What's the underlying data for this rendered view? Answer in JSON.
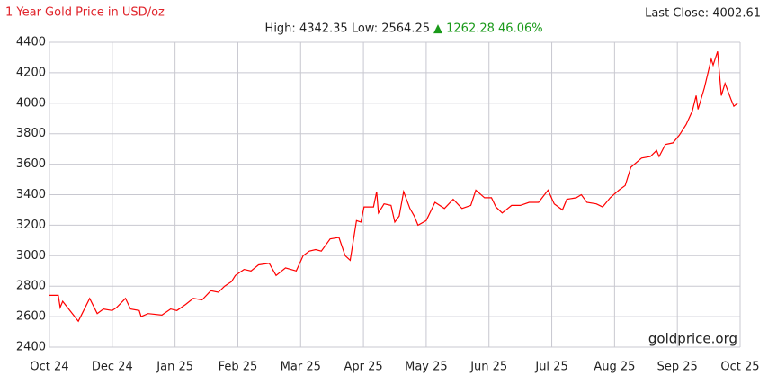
{
  "chart_data": {
    "type": "line",
    "title": "1 Year Gold Price in USD/oz",
    "subtitle": "High: 4342.35 Low: 2564.25",
    "change": "▲ 1262.28 46.06%",
    "last_close": "Last Close: 4002.61",
    "watermark": "goldprice.org",
    "x": [
      0,
      0.14,
      0.17,
      0.21,
      0.46,
      0.64,
      0.76,
      0.86,
      1.0,
      1.07,
      1.21,
      1.29,
      1.43,
      1.46,
      1.57,
      1.79,
      1.93,
      2.03,
      2.17,
      2.29,
      2.43,
      2.57,
      2.69,
      2.79,
      2.9,
      2.96,
      3.1,
      3.21,
      3.33,
      3.5,
      3.61,
      3.76,
      3.93,
      4.04,
      4.14,
      4.24,
      4.33,
      4.47,
      4.61,
      4.71,
      4.79,
      4.89,
      4.96,
      5.01,
      5.16,
      5.21,
      5.24,
      5.33,
      5.44,
      5.5,
      5.57,
      5.64,
      5.74,
      5.81,
      5.87,
      6.0,
      6.14,
      6.29,
      6.43,
      6.57,
      6.71,
      6.79,
      6.93,
      7.04,
      7.11,
      7.21,
      7.36,
      7.5,
      7.64,
      7.79,
      7.94,
      8.04,
      8.17,
      8.24,
      8.39,
      8.47,
      8.56,
      8.71,
      8.81,
      8.93,
      9.07,
      9.17,
      9.26,
      9.43,
      9.57,
      9.67,
      9.71,
      9.81,
      9.93,
      10.03,
      10.14,
      10.24,
      10.3,
      10.33,
      10.43,
      10.54,
      10.57,
      10.64,
      10.7,
      10.76,
      10.86,
      10.9,
      10.96
    ],
    "series": [
      {
        "name": "Gold",
        "color": "#ff0000",
        "values": [
          2740,
          2740,
          2660,
          2700,
          2570,
          2720,
          2620,
          2650,
          2640,
          2660,
          2720,
          2650,
          2640,
          2600,
          2620,
          2610,
          2650,
          2640,
          2680,
          2720,
          2710,
          2770,
          2760,
          2800,
          2830,
          2870,
          2910,
          2900,
          2940,
          2950,
          2870,
          2920,
          2900,
          3000,
          3030,
          3040,
          3030,
          3110,
          3120,
          3000,
          2970,
          3230,
          3220,
          3320,
          3320,
          3420,
          3280,
          3340,
          3330,
          3220,
          3260,
          3420,
          3310,
          3260,
          3200,
          3230,
          3350,
          3310,
          3370,
          3310,
          3330,
          3430,
          3380,
          3380,
          3320,
          3280,
          3330,
          3330,
          3350,
          3350,
          3430,
          3340,
          3300,
          3370,
          3380,
          3400,
          3350,
          3340,
          3320,
          3380,
          3430,
          3460,
          3580,
          3640,
          3650,
          3690,
          3650,
          3730,
          3740,
          3790,
          3860,
          3950,
          4050,
          3960,
          4100,
          4290,
          4250,
          4340,
          4050,
          4130,
          4020,
          3980,
          4000
        ]
      }
    ],
    "xlim": [
      0,
      11
    ],
    "xticks": [
      {
        "value": 0,
        "label": "Oct 24"
      },
      {
        "value": 1,
        "label": "Dec 24"
      },
      {
        "value": 2,
        "label": "Jan 25"
      },
      {
        "value": 3,
        "label": "Feb 25"
      },
      {
        "value": 4,
        "label": "Mar 25"
      },
      {
        "value": 5,
        "label": "Apr 25"
      },
      {
        "value": 6,
        "label": "May 25"
      },
      {
        "value": 7,
        "label": "Jun 25"
      },
      {
        "value": 8,
        "label": "Jul 25"
      },
      {
        "value": 9,
        "label": "Aug 25"
      },
      {
        "value": 10,
        "label": "Sep 25"
      },
      {
        "value": 11,
        "label": "Oct 25"
      }
    ],
    "ylim": [
      2400,
      4400
    ],
    "yticks": [
      2400,
      2600,
      2800,
      3000,
      3200,
      3400,
      3600,
      3800,
      4000,
      4200,
      4400
    ],
    "grid": true
  }
}
